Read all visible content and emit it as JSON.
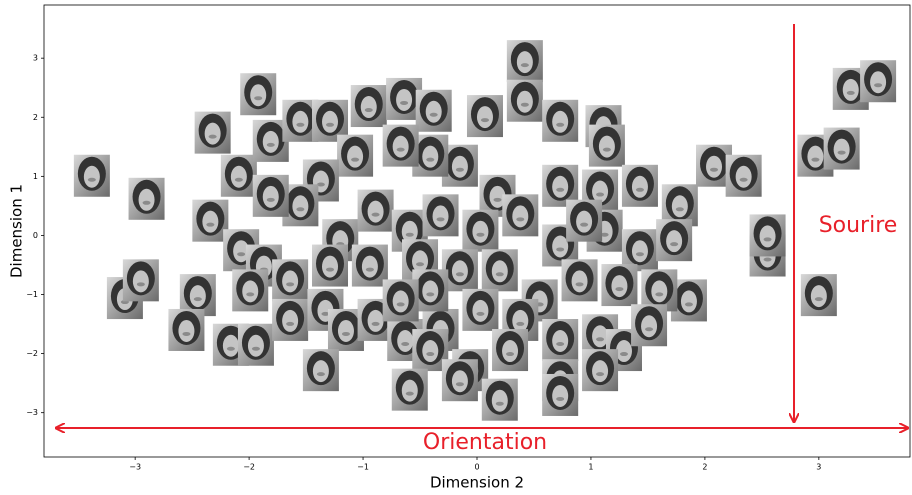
{
  "chart_data": {
    "type": "scatter",
    "xlabel": "Dimension 2",
    "ylabel": "Dimension 1",
    "annotations": [
      "Sourire",
      "Orientation"
    ],
    "xlim": [
      -3.8,
      3.8
    ],
    "ylim": [
      -3.75,
      3.9
    ],
    "xticks": [
      {
        "value": -3,
        "label": "−3"
      },
      {
        "value": -2,
        "label": "−2"
      },
      {
        "value": -1,
        "label": "−1"
      },
      0,
      1,
      2,
      3
    ],
    "yticks": [
      {
        "value": -3,
        "label": "−3"
      },
      {
        "value": -2,
        "label": "−2"
      },
      {
        "value": -1,
        "label": "−1"
      },
      0,
      1,
      2,
      3
    ],
    "x": [
      -3.38,
      -2.9,
      -1.92,
      -2.32,
      0.42,
      3.28,
      3.52,
      2.97,
      3.2,
      2.55,
      2.55,
      3.0,
      -3.09,
      -2.95,
      -2.45,
      -2.55,
      -2.16,
      -1.94,
      -2.34,
      -2.07,
      -1.87,
      -2.09,
      -1.81,
      -1.55,
      -1.29,
      -0.95,
      -0.64,
      -0.38,
      0.07,
      0.42,
      0.73,
      1.11,
      1.14,
      2.08,
      2.34,
      1.78,
      1.43,
      1.08,
      0.73,
      0.18,
      -0.15,
      -0.41,
      -0.67,
      -1.07,
      -1.37,
      -1.55,
      -1.81,
      -1.2,
      -0.89,
      -0.59,
      -0.32,
      0.03,
      0.38,
      0.73,
      1.12,
      1.43,
      1.73,
      1.86,
      1.6,
      1.25,
      0.9,
      0.55,
      0.2,
      -0.15,
      -0.5,
      -0.94,
      -1.29,
      -1.64,
      -1.99,
      -1.64,
      -1.33,
      -1.15,
      -0.89,
      -0.63,
      -0.32,
      0.03,
      0.38,
      0.73,
      1.08,
      1.29,
      1.08,
      0.73,
      0.29,
      -0.06,
      -0.41,
      -0.15,
      0.2,
      0.73,
      -1.37,
      -0.59,
      1.51,
      0.94,
      -0.41,
      -0.67
    ],
    "values": [
      1.01,
      0.62,
      2.39,
      1.74,
      2.95,
      2.48,
      2.61,
      1.35,
      1.47,
      -0.34,
      0,
      -1.01,
      -1.06,
      -0.76,
      -1.01,
      -1.6,
      -1.85,
      -1.85,
      0.25,
      -0.25,
      -0.51,
      1.01,
      1.6,
      1.94,
      1.94,
      2.19,
      2.31,
      2.11,
      2.02,
      2.28,
      1.94,
      1.85,
      1.52,
      1.18,
      1.01,
      0.51,
      0.84,
      0.76,
      0.84,
      0.67,
      1.18,
      1.35,
      1.52,
      1.35,
      0.93,
      0.51,
      0.67,
      -0.08,
      0.42,
      0.08,
      0.34,
      0.08,
      0.34,
      -0.17,
      0.08,
      -0.25,
      -0.08,
      -1.1,
      -0.93,
      -0.84,
      -0.76,
      -1.1,
      -0.59,
      -0.59,
      -0.42,
      -0.51,
      -0.51,
      -0.76,
      -0.93,
      -1.43,
      -1.26,
      -1.6,
      -1.43,
      -1.77,
      -1.6,
      -1.26,
      -1.43,
      -1.77,
      -1.69,
      -1.94,
      -2.28,
      -2.45,
      -1.94,
      -2.28,
      -1.94,
      -2.45,
      -2.78,
      -2.7,
      -2.28,
      -2.61,
      -1.52,
      0.25,
      -0.93,
      -1.1
    ],
    "color": "#8a8a8a"
  }
}
